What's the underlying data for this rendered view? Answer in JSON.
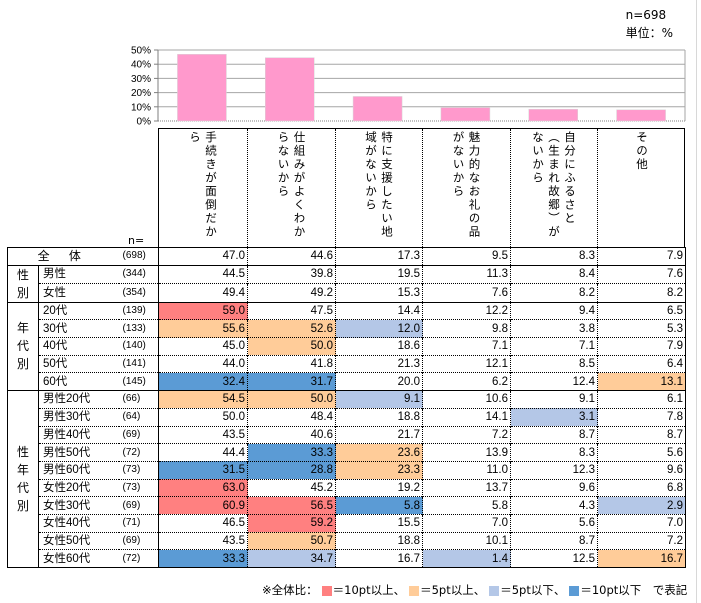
{
  "header": {
    "n_total": "n=698",
    "unit": "単位：%"
  },
  "colors": {
    "bar": "#ff99cc",
    "plus10": "#ff8080",
    "plus5": "#ffcc99",
    "minus5": "#b4c7e7",
    "minus10": "#5b9bd5"
  },
  "chart_data": {
    "type": "bar",
    "title": "",
    "xlabel": "",
    "ylabel": "",
    "ylim": [
      0,
      50
    ],
    "yticks": [
      "50%",
      "40%",
      "30%",
      "20%",
      "10%",
      "0%"
    ],
    "grid": true,
    "categories": [
      "手続きが面倒だから",
      "仕組みがよくわからないから",
      "特に支援したい地域がないから",
      "魅力的なお礼の品がないから",
      "自分にふるさと（生まれ故郷）がないから",
      "その他"
    ],
    "values": [
      47.0,
      44.6,
      17.3,
      9.5,
      8.3,
      7.9
    ]
  },
  "table": {
    "n_label": "n=",
    "columns": [
      [
        "手",
        "続",
        "き",
        "が",
        "面",
        "倒",
        "だ",
        "か",
        "ら"
      ],
      [
        "仕組みがよくわか",
        "らないから"
      ],
      [
        "特に支援したい地",
        "域がないから"
      ],
      [
        "魅力的なお礼の品",
        "がないから"
      ],
      [
        "自分にふるさと",
        "︵生まれ故郷︶が",
        "ないから"
      ],
      [
        "その他"
      ]
    ],
    "column_text": [
      "手続きが面倒だか",
      "ら"
    ],
    "groups": [
      {
        "label": "全体",
        "rows": [
          {
            "name": "全 体",
            "n": "(698)",
            "values": [
              "47.0",
              "44.6",
              "17.3",
              "9.5",
              "8.3",
              "7.9"
            ],
            "marks": [
              "",
              "",
              "",
              "",
              "",
              ""
            ]
          }
        ]
      },
      {
        "label": "性別",
        "rows": [
          {
            "name": "男性",
            "n": "(344)",
            "values": [
              "44.5",
              "39.8",
              "19.5",
              "11.3",
              "8.4",
              "7.6"
            ],
            "marks": [
              "",
              "",
              "",
              "",
              "",
              ""
            ]
          },
          {
            "name": "女性",
            "n": "(354)",
            "values": [
              "49.4",
              "49.2",
              "15.3",
              "7.6",
              "8.2",
              "8.2"
            ],
            "marks": [
              "",
              "",
              "",
              "",
              "",
              ""
            ]
          }
        ]
      },
      {
        "label": "年代別",
        "rows": [
          {
            "name": "20代",
            "n": "(139)",
            "values": [
              "59.0",
              "47.5",
              "14.4",
              "12.2",
              "9.4",
              "6.5"
            ],
            "marks": [
              "plus10",
              "",
              "",
              "",
              "",
              ""
            ]
          },
          {
            "name": "30代",
            "n": "(133)",
            "values": [
              "55.6",
              "52.6",
              "12.0",
              "9.8",
              "3.8",
              "5.3"
            ],
            "marks": [
              "plus5",
              "plus5",
              "minus5",
              "",
              "",
              ""
            ]
          },
          {
            "name": "40代",
            "n": "(140)",
            "values": [
              "45.0",
              "50.0",
              "18.6",
              "7.1",
              "7.1",
              "7.9"
            ],
            "marks": [
              "",
              "plus5",
              "",
              "",
              "",
              ""
            ]
          },
          {
            "name": "50代",
            "n": "(141)",
            "values": [
              "44.0",
              "41.8",
              "21.3",
              "12.1",
              "8.5",
              "6.4"
            ],
            "marks": [
              "",
              "",
              "",
              "",
              "",
              ""
            ]
          },
          {
            "name": "60代",
            "n": "(145)",
            "values": [
              "32.4",
              "31.7",
              "20.0",
              "6.2",
              "12.4",
              "13.1"
            ],
            "marks": [
              "minus10",
              "minus10",
              "",
              "",
              "",
              "plus5"
            ]
          }
        ]
      },
      {
        "label": "性年代別",
        "rows": [
          {
            "name": "男性20代",
            "n": "(66)",
            "values": [
              "54.5",
              "50.0",
              "9.1",
              "10.6",
              "9.1",
              "6.1"
            ],
            "marks": [
              "plus5",
              "plus5",
              "minus5",
              "",
              "",
              ""
            ]
          },
          {
            "name": "男性30代",
            "n": "(64)",
            "values": [
              "50.0",
              "48.4",
              "18.8",
              "14.1",
              "3.1",
              "7.8"
            ],
            "marks": [
              "",
              "",
              "",
              "",
              "minus5",
              ""
            ]
          },
          {
            "name": "男性40代",
            "n": "(69)",
            "values": [
              "43.5",
              "40.6",
              "21.7",
              "7.2",
              "8.7",
              "8.7"
            ],
            "marks": [
              "",
              "",
              "",
              "",
              "",
              ""
            ]
          },
          {
            "name": "男性50代",
            "n": "(72)",
            "values": [
              "44.4",
              "33.3",
              "23.6",
              "13.9",
              "8.3",
              "5.6"
            ],
            "marks": [
              "",
              "minus10",
              "plus5",
              "",
              "",
              ""
            ]
          },
          {
            "name": "男性60代",
            "n": "(73)",
            "values": [
              "31.5",
              "28.8",
              "23.3",
              "11.0",
              "12.3",
              "9.6"
            ],
            "marks": [
              "minus10",
              "minus10",
              "plus5",
              "",
              "",
              ""
            ]
          },
          {
            "name": "女性20代",
            "n": "(73)",
            "values": [
              "63.0",
              "45.2",
              "19.2",
              "13.7",
              "9.6",
              "6.8"
            ],
            "marks": [
              "plus10",
              "",
              "",
              "",
              "",
              ""
            ]
          },
          {
            "name": "女性30代",
            "n": "(69)",
            "values": [
              "60.9",
              "56.5",
              "5.8",
              "5.8",
              "4.3",
              "2.9"
            ],
            "marks": [
              "plus10",
              "plus10",
              "minus10",
              "",
              "",
              "minus5"
            ]
          },
          {
            "name": "女性40代",
            "n": "(71)",
            "values": [
              "46.5",
              "59.2",
              "15.5",
              "7.0",
              "5.6",
              "7.0"
            ],
            "marks": [
              "",
              "plus10",
              "",
              "",
              "",
              ""
            ]
          },
          {
            "name": "女性50代",
            "n": "(69)",
            "values": [
              "43.5",
              "50.7",
              "18.8",
              "10.1",
              "8.7",
              "7.2"
            ],
            "marks": [
              "",
              "plus5",
              "",
              "",
              "",
              ""
            ]
          },
          {
            "name": "女性60代",
            "n": "(72)",
            "values": [
              "33.3",
              "34.7",
              "16.7",
              "1.4",
              "12.5",
              "16.7"
            ],
            "marks": [
              "minus10",
              "minus5",
              "",
              "minus5",
              "",
              "plus5"
            ]
          }
        ]
      }
    ]
  },
  "legend": {
    "prefix": "※全体比：",
    "items": [
      {
        "key": "plus10",
        "label": "＝10pt以上、"
      },
      {
        "key": "plus5",
        "label": "＝5pt以上、"
      },
      {
        "key": "minus5",
        "label": "＝5pt以下、"
      },
      {
        "key": "minus10",
        "label": "＝10pt以下"
      }
    ],
    "suffix": "　で表記"
  }
}
